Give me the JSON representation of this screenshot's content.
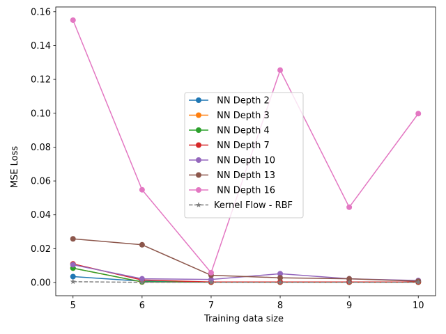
{
  "chart_data": {
    "type": "line",
    "xlabel": "Training data size",
    "ylabel": "MSE Loss",
    "xlim": [
      4.75,
      10.25
    ],
    "ylim": [
      -0.0078,
      0.1628
    ],
    "xticks": [
      5,
      6,
      7,
      8,
      9,
      10
    ],
    "yticks": [
      0.0,
      0.02,
      0.04,
      0.06,
      0.08,
      0.1,
      0.12,
      0.14,
      0.16
    ],
    "ytick_labels": [
      "0.00",
      "0.02",
      "0.04",
      "0.06",
      "0.08",
      "0.10",
      "0.12",
      "0.14",
      "0.16"
    ],
    "grid": false,
    "legend_position": "center",
    "x": [
      5,
      6,
      7,
      8,
      9,
      10
    ],
    "series": [
      {
        "name": " NN Depth 2",
        "color": "#1f77b4",
        "marker": "circle",
        "dash": "solid",
        "values": [
          0.0035,
          0.0008,
          0.0002,
          0.0002,
          0.0002,
          0.0002
        ]
      },
      {
        "name": " NN Depth 3",
        "color": "#ff7f0e",
        "marker": "circle",
        "dash": "solid",
        "values": [
          0.0085,
          0.0003,
          0.0002,
          0.0002,
          0.0002,
          0.0002
        ]
      },
      {
        "name": " NN Depth 4",
        "color": "#2ca02c",
        "marker": "circle",
        "dash": "solid",
        "values": [
          0.0085,
          0.0004,
          0.0002,
          0.0002,
          0.0002,
          0.0002
        ]
      },
      {
        "name": " NN Depth 7",
        "color": "#d62728",
        "marker": "circle",
        "dash": "solid",
        "values": [
          0.011,
          0.0015,
          0.0003,
          0.0003,
          0.0003,
          0.0003
        ]
      },
      {
        "name": " NN Depth 10",
        "color": "#9467bd",
        "marker": "circle",
        "dash": "solid",
        "values": [
          0.0105,
          0.0022,
          0.0018,
          0.0052,
          0.0022,
          0.0012
        ]
      },
      {
        "name": " NN Depth 13",
        "color": "#8c564b",
        "marker": "circle",
        "dash": "solid",
        "values": [
          0.0258,
          0.0223,
          0.0043,
          0.0028,
          0.0022,
          0.0008
        ]
      },
      {
        "name": " NN Depth 16",
        "color": "#e377c2",
        "marker": "circle",
        "dash": "solid",
        "values": [
          0.155,
          0.0548,
          0.0058,
          0.1255,
          0.0445,
          0.0998
        ]
      },
      {
        "name": "Kernel Flow - RBF",
        "color": "#7f7f7f",
        "marker": "star",
        "dash": "dashed",
        "values": [
          0.0005,
          0.0001,
          0.0001,
          0.0001,
          0.0001,
          0.0001
        ]
      }
    ]
  }
}
